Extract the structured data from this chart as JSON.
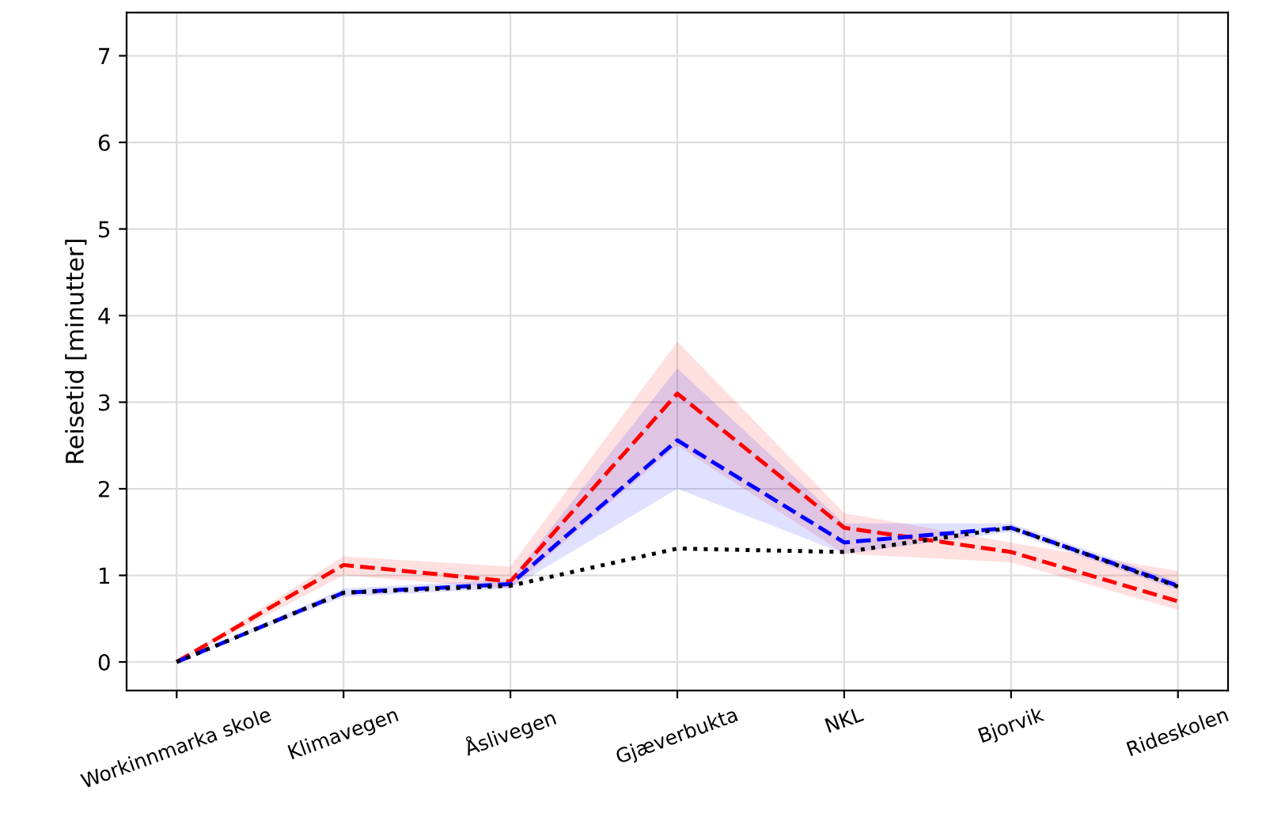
{
  "chart_data": {
    "type": "line",
    "ylabel": "Reisetid [minutter]",
    "categories": [
      "Workinnmarka skole",
      "Klimavegen",
      "Åslivegen",
      "Gjæverbukta",
      "NKL",
      "Bjorvik",
      "Rideskolen"
    ],
    "series": [
      {
        "color": "#ff0000",
        "line_style": "dashed",
        "values": [
          0,
          1.12,
          0.93,
          3.1,
          1.55,
          1.27,
          0.7
        ],
        "lower": [
          0,
          1.0,
          0.85,
          2.5,
          1.25,
          1.15,
          0.6
        ],
        "upper": [
          0,
          1.22,
          1.1,
          3.7,
          1.72,
          1.38,
          1.05
        ]
      },
      {
        "color": "#0000ff",
        "line_style": "dashed",
        "values": [
          0,
          0.8,
          0.9,
          2.56,
          1.38,
          1.55,
          0.88
        ],
        "lower": [
          0,
          0.75,
          0.85,
          2.0,
          1.25,
          1.5,
          0.83
        ],
        "upper": [
          0,
          0.85,
          0.95,
          3.39,
          1.6,
          1.6,
          0.93
        ]
      },
      {
        "color": "#000000",
        "line_style": "dotted",
        "values": [
          0,
          0.8,
          0.88,
          1.31,
          1.27,
          1.55,
          0.87
        ]
      }
    ],
    "ylim": [
      -0.33,
      7.5
    ],
    "yticks": [
      0,
      1,
      2,
      3,
      4,
      5,
      6,
      7
    ],
    "grid": true,
    "legend": false,
    "marker": "none"
  }
}
